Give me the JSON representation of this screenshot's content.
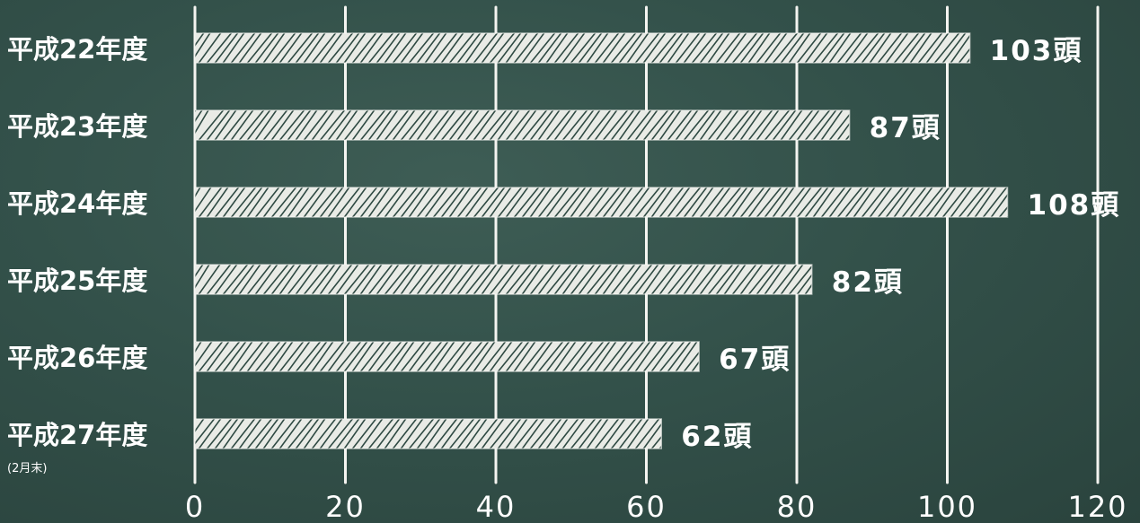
{
  "chart_data": {
    "type": "bar",
    "orientation": "horizontal",
    "categories": [
      "平成22年度",
      "平成23年度",
      "平成24年度",
      "平成25年度",
      "平成26年度",
      "平成27年度"
    ],
    "category_notes": [
      "",
      "",
      "",
      "",
      "",
      "(2月末)"
    ],
    "values": [
      103,
      87,
      108,
      82,
      67,
      62
    ],
    "value_labels": [
      "103頭",
      "87頭",
      "108頭",
      "82頭",
      "67頭",
      "62頭"
    ],
    "x_ticks": [
      "0",
      "20",
      "40",
      "60",
      "80",
      "100",
      "120"
    ],
    "xlim": [
      0,
      120
    ],
    "grid": true,
    "colors": {
      "background": "#2f4a43",
      "bar": "#e9ebe6",
      "text": "#ffffff"
    }
  }
}
